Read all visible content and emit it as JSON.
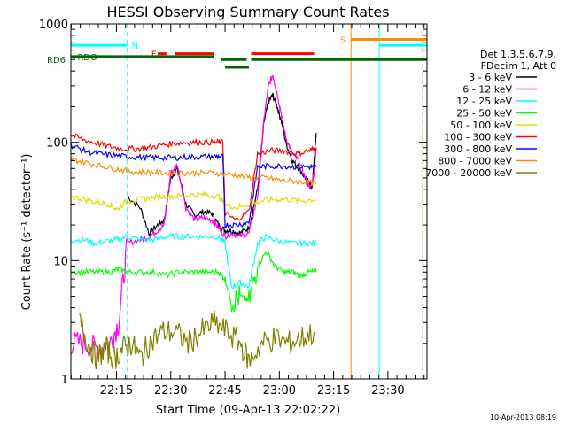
{
  "chart_data": {
    "type": "line",
    "title": "HESSI Observing Summary Count Rates",
    "xlabel": "Start Time (09-Apr-13 22:02:22)",
    "ylabel": "Count Rate (s⁻¹ detector⁻¹)",
    "yscale": "log",
    "ylim": [
      1,
      1000
    ],
    "xlim": [
      22.04,
      23.68
    ],
    "y_ticks": [
      {
        "value": 1,
        "label": "1"
      },
      {
        "value": 10,
        "label": "10"
      },
      {
        "value": 100,
        "label": "100"
      },
      {
        "value": 1000,
        "label": "1000"
      }
    ],
    "x_ticks": [
      {
        "value": 22.25,
        "label": "22:15"
      },
      {
        "value": 22.5,
        "label": "22:30"
      },
      {
        "value": 22.75,
        "label": "22:45"
      },
      {
        "value": 23.0,
        "label": "23:00"
      },
      {
        "value": 23.25,
        "label": "23:15"
      },
      {
        "value": 23.5,
        "label": "23:30"
      }
    ],
    "legend_header": [
      "Det 1,3,5,6,7,9,",
      "FDecim 1, Att 0"
    ],
    "legend_placement": "right",
    "footer": "10-Apr-2013 08:19",
    "series": [
      {
        "name": "3 - 6 keV",
        "color": "#000000",
        "x": [
          22.3,
          22.36,
          22.4,
          22.44,
          22.47,
          22.5,
          22.53,
          22.57,
          22.61,
          22.65,
          22.69,
          22.72,
          22.75,
          22.78,
          22.82,
          22.86,
          22.9,
          22.93,
          22.95,
          22.97,
          22.99,
          23.01,
          23.03,
          23.06,
          23.09,
          23.12,
          23.14,
          23.15,
          23.16,
          23.17
        ],
        "y": [
          35,
          28,
          17,
          20,
          22,
          50,
          60,
          30,
          24,
          26,
          25,
          20,
          18,
          18,
          17,
          19,
          40,
          150,
          220,
          250,
          200,
          150,
          100,
          70,
          60,
          50,
          45,
          40,
          70,
          120
        ]
      },
      {
        "name": "6 - 12 keV",
        "color": "#ff00ff",
        "x": [
          22.04,
          22.1,
          22.16,
          22.22,
          22.26,
          22.3,
          22.36,
          22.4,
          22.44,
          22.47,
          22.5,
          22.53,
          22.57,
          22.61,
          22.65,
          22.69,
          22.72,
          22.75,
          22.78,
          22.82,
          22.86,
          22.9,
          22.93,
          22.95,
          22.97,
          22.99,
          23.01,
          23.03,
          23.06,
          23.09,
          23.12,
          23.14,
          23.16,
          23.17
        ],
        "y": [
          2.0,
          2.0,
          1.8,
          2.0,
          3.0,
          14,
          15,
          16,
          18,
          20,
          55,
          65,
          28,
          22,
          23,
          22,
          19,
          16,
          17,
          16,
          17,
          35,
          160,
          300,
          370,
          260,
          170,
          110,
          80,
          70,
          50,
          40,
          55,
          90
        ]
      },
      {
        "name": "12 - 25 keV",
        "color": "#00ffff",
        "x": [
          22.04,
          22.1,
          22.15,
          22.2,
          22.25,
          22.3,
          22.36,
          22.42,
          22.48,
          22.54,
          22.6,
          22.66,
          22.72,
          22.75,
          22.78,
          22.82,
          22.86,
          22.9,
          22.94,
          23.0,
          23.06,
          23.12,
          23.17
        ],
        "y": [
          15,
          15,
          14,
          14.5,
          15,
          16,
          15,
          15,
          16,
          16,
          16,
          16,
          16,
          14,
          6,
          6.5,
          6,
          14,
          16,
          14.5,
          14,
          14,
          14
        ]
      },
      {
        "name": "25 - 50 keV",
        "color": "#00ff00",
        "x": [
          22.04,
          22.1,
          22.16,
          22.22,
          22.26,
          22.3,
          22.36,
          22.42,
          22.48,
          22.54,
          22.6,
          22.66,
          22.72,
          22.75,
          22.78,
          22.82,
          22.86,
          22.9,
          22.94,
          22.98,
          23.02,
          23.06,
          23.1,
          23.14,
          23.17
        ],
        "y": [
          8,
          8,
          8,
          8,
          8.5,
          8,
          8,
          8,
          7.5,
          8,
          8,
          8,
          8,
          7,
          4.5,
          5,
          4.5,
          9,
          12,
          9,
          8,
          8,
          7.5,
          8,
          8
        ]
      },
      {
        "name": "50 - 100 keV",
        "color": "#dddd00",
        "x": [
          22.04,
          22.1,
          22.16,
          22.22,
          22.25,
          22.3,
          22.36,
          22.42,
          22.48,
          22.54,
          22.6,
          22.66,
          22.72,
          22.75,
          22.8,
          22.86,
          22.92,
          22.98,
          23.04,
          23.1,
          23.17
        ],
        "y": [
          35,
          33,
          31,
          30,
          27,
          32,
          33,
          34,
          35,
          35,
          36,
          36,
          35,
          30,
          28,
          30,
          32,
          33,
          33,
          32,
          33
        ]
      },
      {
        "name": "100 - 300 keV",
        "color": "#ff0000",
        "x": [
          22.04,
          22.1,
          22.16,
          22.22,
          22.28,
          22.34,
          22.4,
          22.46,
          22.52,
          22.58,
          22.64,
          22.7,
          22.74,
          22.75,
          22.8,
          22.86,
          22.9,
          22.96,
          23.02,
          23.08,
          23.14,
          23.17
        ],
        "y": [
          115,
          105,
          98,
          92,
          88,
          88,
          90,
          95,
          98,
          100,
          100,
          100,
          100,
          25,
          22,
          26,
          80,
          85,
          85,
          80,
          85,
          90
        ]
      },
      {
        "name": "300 - 800 keV",
        "color": "#0000ff",
        "x": [
          22.04,
          22.1,
          22.16,
          22.22,
          22.28,
          22.34,
          22.4,
          22.46,
          22.52,
          22.58,
          22.64,
          22.7,
          22.74,
          22.75,
          22.8,
          22.86,
          22.9,
          22.96,
          23.02,
          23.08,
          23.14,
          23.17
        ],
        "y": [
          95,
          85,
          80,
          78,
          76,
          75,
          74,
          74,
          74,
          75,
          75,
          76,
          76,
          20,
          20,
          21,
          62,
          63,
          63,
          62,
          62,
          62
        ]
      },
      {
        "name": "800 - 7000 keV",
        "color": "#ff8c00",
        "x": [
          22.04,
          22.1,
          22.16,
          22.22,
          22.28,
          22.34,
          22.4,
          22.46,
          22.52,
          22.58,
          22.64,
          22.7,
          22.76,
          22.82,
          22.88,
          22.94,
          23.0,
          23.06,
          23.12,
          23.17
        ],
        "y": [
          72,
          68,
          64,
          61,
          58,
          56,
          56,
          55,
          55,
          55,
          55,
          55,
          54,
          52,
          50,
          50,
          48,
          47,
          46,
          45
        ]
      },
      {
        "name": "7000 - 20000 keV",
        "color": "#808000",
        "x": [
          22.08,
          22.12,
          22.16,
          22.2,
          22.24,
          22.28,
          22.32,
          22.36,
          22.4,
          22.46,
          22.52,
          22.58,
          22.64,
          22.7,
          22.76,
          22.82,
          22.86,
          22.92,
          22.98,
          23.04,
          23.1,
          23.16
        ],
        "y": [
          3.0,
          2.0,
          1.5,
          1.8,
          1.5,
          1.8,
          2.0,
          1.5,
          2.0,
          2.5,
          2.5,
          2.0,
          2.5,
          3.0,
          2.5,
          2.0,
          1.4,
          2.0,
          2.2,
          2.0,
          2.2,
          2.5
        ]
      }
    ],
    "flags": [
      {
        "label": "N",
        "color": "#00ffff",
        "segments": [
          [
            22.04,
            22.3
          ]
        ],
        "y": 660,
        "label_x": 22.32
      },
      {
        "label": "N",
        "color": "#00ffff",
        "segments": [
          [
            23.46,
            23.68
          ]
        ],
        "y": 660
      },
      {
        "label": "S",
        "color": "#ff8c00",
        "segments": [
          [
            23.33,
            23.68
          ]
        ],
        "y": 740,
        "label_x": 23.28
      },
      {
        "label": "F",
        "color": "#ff0000",
        "segments": [
          [
            22.44,
            22.48
          ],
          [
            22.52,
            22.7
          ],
          [
            22.87,
            23.16
          ]
        ],
        "y": 560,
        "label_x": 22.41
      },
      {
        "label": "RDO",
        "color": "#006600",
        "segments": [
          [
            22.04,
            22.7
          ]
        ],
        "y": 530,
        "label_x": 22.07
      },
      {
        "label": "",
        "color": "#006600",
        "segments": [
          [
            22.73,
            22.85
          ],
          [
            22.87,
            23.68
          ]
        ],
        "y": 500
      },
      {
        "label": "",
        "color": "#006600",
        "segments": [
          [
            22.75,
            22.86
          ]
        ],
        "y": 430
      }
    ],
    "left_label": "RD6",
    "vertical_lines": [
      {
        "x": 22.3,
        "color": "#00ffff",
        "dashed": true
      },
      {
        "x": 23.33,
        "color": "#ff8c00",
        "dashed": false
      },
      {
        "x": 23.46,
        "color": "#00ffff",
        "dashed": false
      },
      {
        "x": 23.66,
        "color": "#00ffff",
        "dashed": true
      },
      {
        "x": 23.66,
        "color": "#ff8c00",
        "dashed": true
      }
    ]
  }
}
